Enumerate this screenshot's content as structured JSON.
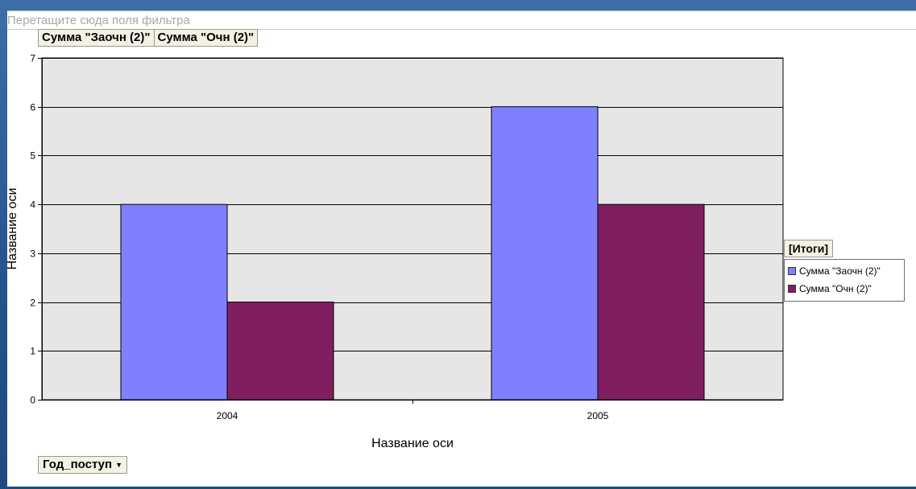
{
  "filter_area": {
    "placeholder_text": "Перетащите сюда поля фильтра"
  },
  "series_buttons": [
    "Сумма \"Заочн (2)\"",
    "Сумма \"Очн (2)\""
  ],
  "category_field": {
    "label": "Год_поступ",
    "icon": "dropdown-arrow-icon"
  },
  "legend": {
    "title": "[Итоги]",
    "items": [
      {
        "label": "Сумма \"Заочн (2)\"",
        "color": "#8080ff"
      },
      {
        "label": "Сумма \"Очн (2)\"",
        "color": "#7f1f5f"
      }
    ]
  },
  "chart_data": {
    "type": "bar",
    "categories": [
      "2004",
      "2005"
    ],
    "series": [
      {
        "name": "Сумма \"Заочн (2)\"",
        "values": [
          4,
          6
        ],
        "color": "#8080ff"
      },
      {
        "name": "Сумма \"Очн (2)\"",
        "values": [
          2,
          4
        ],
        "color": "#7f1f5f"
      }
    ],
    "xlabel": "Название оси",
    "ylabel": "Название оси",
    "ylim": [
      0,
      7
    ],
    "yticks": [
      0,
      1,
      2,
      3,
      4,
      5,
      6,
      7
    ],
    "grid": true,
    "plot_background": "#e6e6e6",
    "legend_position": "right"
  }
}
